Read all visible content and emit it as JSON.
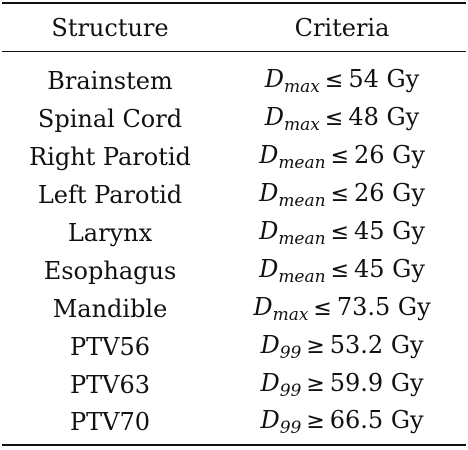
{
  "table": {
    "headers": {
      "structure": "Structure",
      "criteria": "Criteria"
    },
    "rows": [
      {
        "structure": "Brainstem",
        "symbol": "D",
        "sub": "max",
        "op": "≤",
        "value": "54 Gy"
      },
      {
        "structure": "Spinal Cord",
        "symbol": "D",
        "sub": "max",
        "op": "≤",
        "value": "48 Gy"
      },
      {
        "structure": "Right Parotid",
        "symbol": "D",
        "sub": "mean",
        "op": "≤",
        "value": "26 Gy"
      },
      {
        "structure": "Left Parotid",
        "symbol": "D",
        "sub": "mean",
        "op": "≤",
        "value": "26 Gy"
      },
      {
        "structure": "Larynx",
        "symbol": "D",
        "sub": "mean",
        "op": "≤",
        "value": "45 Gy"
      },
      {
        "structure": "Esophagus",
        "symbol": "D",
        "sub": "mean",
        "op": "≤",
        "value": "45 Gy"
      },
      {
        "structure": "Mandible",
        "symbol": "D",
        "sub": "max",
        "op": "≤",
        "value": "73.5 Gy"
      },
      {
        "structure": "PTV56",
        "symbol": "D",
        "sub": "99",
        "op": "≥",
        "value": "53.2 Gy"
      },
      {
        "structure": "PTV63",
        "symbol": "D",
        "sub": "99",
        "op": "≥",
        "value": "59.9 Gy"
      },
      {
        "structure": "PTV70",
        "symbol": "D",
        "sub": "99",
        "op": "≥",
        "value": "66.5 Gy"
      }
    ]
  }
}
